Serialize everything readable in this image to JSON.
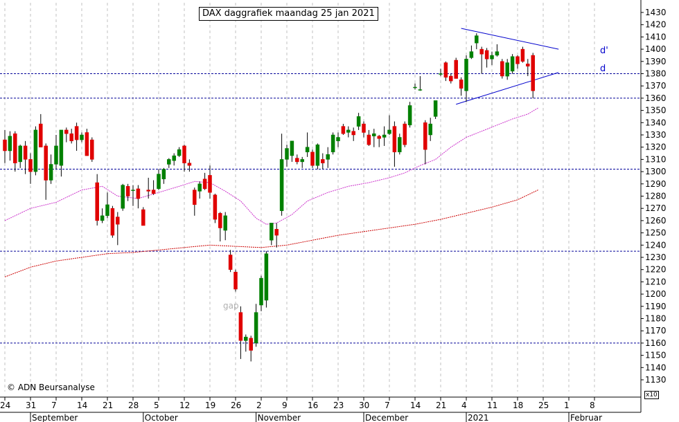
{
  "title": "DAX daggrafiek maandag 25 jan 2021",
  "copyright": "© ADN Beursanalyse",
  "annotations": {
    "gap": "gap",
    "trendline_upper": "d'",
    "trendline_lower": "d"
  },
  "axis_multiplier": "x10",
  "colors": {
    "bull": "#008000",
    "bear": "#e00000",
    "ma_short": "#cc33cc",
    "ma_long": "#cc0000",
    "horizontal_lines": "#000099",
    "trendlines": "#0000cc",
    "grid": "#c0c0c0"
  },
  "chart_data": {
    "type": "candlestick",
    "title": "DAX daggrafiek maandag 25 jan 2021",
    "y_unit_multiplier": 10,
    "ylim": [
      1125,
      1440
    ],
    "yticks": [
      1130,
      1140,
      1150,
      1160,
      1170,
      1180,
      1190,
      1200,
      1210,
      1220,
      1230,
      1240,
      1250,
      1260,
      1270,
      1280,
      1290,
      1300,
      1310,
      1320,
      1330,
      1340,
      1350,
      1360,
      1370,
      1380,
      1390,
      1400,
      1410,
      1420,
      1430
    ],
    "x_tick_labels": [
      {
        "label": "24",
        "day": 0
      },
      {
        "label": "31",
        "day": 5
      },
      {
        "label": "7",
        "day": 10
      },
      {
        "label": "14",
        "day": 15
      },
      {
        "label": "21",
        "day": 20
      },
      {
        "label": "28",
        "day": 25
      },
      {
        "label": "5",
        "day": 30
      },
      {
        "label": "12",
        "day": 35
      },
      {
        "label": "19",
        "day": 40
      },
      {
        "label": "26",
        "day": 45
      },
      {
        "label": "2",
        "day": 50
      },
      {
        "label": "9",
        "day": 55
      },
      {
        "label": "16",
        "day": 60
      },
      {
        "label": "23",
        "day": 65
      },
      {
        "label": "30",
        "day": 70
      },
      {
        "label": "7",
        "day": 75
      },
      {
        "label": "14",
        "day": 80
      },
      {
        "label": "21",
        "day": 85
      },
      {
        "label": "4",
        "day": 90
      },
      {
        "label": "11",
        "day": 95
      },
      {
        "label": "18",
        "day": 100
      },
      {
        "label": "25",
        "day": 105
      },
      {
        "label": "1",
        "day": 110
      },
      {
        "label": "8",
        "day": 115
      }
    ],
    "month_labels": [
      {
        "label": "September",
        "day": 5
      },
      {
        "label": "October",
        "day": 27
      },
      {
        "label": "November",
        "day": 49
      },
      {
        "label": "December",
        "day": 70
      },
      {
        "label": "2021",
        "day": 90
      },
      {
        "label": "Februar",
        "day": 110
      }
    ],
    "horizontal_levels": [
      1380,
      1360,
      1302,
      1235,
      1160
    ],
    "trendlines": [
      {
        "name": "d'",
        "from": [
          89,
          1417
        ],
        "to": [
          108,
          1400
        ]
      },
      {
        "name": "d",
        "from": [
          88,
          1355
        ],
        "to": [
          108,
          1381
        ]
      }
    ],
    "moving_averages": [
      {
        "name": "ma_short",
        "points": [
          [
            0,
            1260
          ],
          [
            5,
            1270
          ],
          [
            10,
            1275
          ],
          [
            15,
            1285
          ],
          [
            19,
            1288
          ],
          [
            22,
            1280
          ],
          [
            26,
            1278
          ],
          [
            30,
            1283
          ],
          [
            34,
            1288
          ],
          [
            37,
            1292
          ],
          [
            40,
            1291
          ],
          [
            43,
            1284
          ],
          [
            46,
            1276
          ],
          [
            49,
            1262
          ],
          [
            51,
            1257
          ],
          [
            53,
            1258
          ],
          [
            56,
            1265
          ],
          [
            59,
            1276
          ],
          [
            63,
            1283
          ],
          [
            67,
            1288
          ],
          [
            71,
            1291
          ],
          [
            75,
            1295
          ],
          [
            78,
            1299
          ],
          [
            81,
            1305
          ],
          [
            84,
            1310
          ],
          [
            87,
            1320
          ],
          [
            90,
            1328
          ],
          [
            93,
            1333
          ],
          [
            96,
            1338
          ],
          [
            99,
            1343
          ],
          [
            102,
            1347
          ],
          [
            104,
            1352
          ]
        ]
      },
      {
        "name": "ma_long",
        "points": [
          [
            0,
            1214
          ],
          [
            5,
            1222
          ],
          [
            10,
            1227
          ],
          [
            15,
            1230
          ],
          [
            20,
            1233
          ],
          [
            25,
            1234
          ],
          [
            30,
            1236
          ],
          [
            35,
            1238
          ],
          [
            40,
            1240
          ],
          [
            45,
            1239
          ],
          [
            50,
            1238
          ],
          [
            55,
            1240
          ],
          [
            60,
            1244
          ],
          [
            65,
            1248
          ],
          [
            70,
            1251
          ],
          [
            75,
            1254
          ],
          [
            80,
            1257
          ],
          [
            85,
            1261
          ],
          [
            90,
            1266
          ],
          [
            95,
            1271
          ],
          [
            100,
            1277
          ],
          [
            104,
            1285
          ]
        ]
      }
    ],
    "candles": [
      {
        "d": 0,
        "o": 1326,
        "h": 1334,
        "l": 1307,
        "c": 1317
      },
      {
        "d": 1,
        "o": 1317,
        "h": 1333,
        "l": 1309,
        "c": 1329
      },
      {
        "d": 2,
        "o": 1331,
        "h": 1333,
        "l": 1300,
        "c": 1307
      },
      {
        "d": 3,
        "o": 1308,
        "h": 1322,
        "l": 1303,
        "c": 1321
      },
      {
        "d": 4,
        "o": 1321,
        "h": 1325,
        "l": 1298,
        "c": 1310
      },
      {
        "d": 5,
        "o": 1310,
        "h": 1315,
        "l": 1290,
        "c": 1300
      },
      {
        "d": 6,
        "o": 1300,
        "h": 1337,
        "l": 1297,
        "c": 1334
      },
      {
        "d": 7,
        "o": 1339,
        "h": 1347,
        "l": 1320,
        "c": 1320
      },
      {
        "d": 8,
        "o": 1321,
        "h": 1323,
        "l": 1277,
        "c": 1293
      },
      {
        "d": 9,
        "o": 1293,
        "h": 1314,
        "l": 1290,
        "c": 1306
      },
      {
        "d": 10,
        "o": 1306,
        "h": 1330,
        "l": 1302,
        "c": 1321
      },
      {
        "d": 11,
        "o": 1305,
        "h": 1332,
        "l": 1296,
        "c": 1334
      },
      {
        "d": 12,
        "o": 1334,
        "h": 1336,
        "l": 1324,
        "c": 1331
      },
      {
        "d": 13,
        "o": 1331,
        "h": 1335,
        "l": 1323,
        "c": 1325
      },
      {
        "d": 14,
        "o": 1337,
        "h": 1340,
        "l": 1317,
        "c": 1326
      },
      {
        "d": 15,
        "o": 1326,
        "h": 1332,
        "l": 1324,
        "c": 1330
      },
      {
        "d": 16,
        "o": 1332,
        "h": 1335,
        "l": 1313,
        "c": 1313
      },
      {
        "d": 17,
        "o": 1326,
        "h": 1328,
        "l": 1308,
        "c": 1310
      },
      {
        "d": 18,
        "o": 1291,
        "h": 1298,
        "l": 1256,
        "c": 1260
      },
      {
        "d": 19,
        "o": 1260,
        "h": 1270,
        "l": 1258,
        "c": 1264
      },
      {
        "d": 20,
        "o": 1264,
        "h": 1283,
        "l": 1262,
        "c": 1273
      },
      {
        "d": 21,
        "o": 1270,
        "h": 1272,
        "l": 1246,
        "c": 1248
      },
      {
        "d": 22,
        "o": 1263,
        "h": 1267,
        "l": 1240,
        "c": 1257
      },
      {
        "d": 23,
        "o": 1270,
        "h": 1290,
        "l": 1268,
        "c": 1289
      },
      {
        "d": 24,
        "o": 1288,
        "h": 1290,
        "l": 1276,
        "c": 1280
      },
      {
        "d": 25,
        "o": 1285,
        "h": 1289,
        "l": 1272,
        "c": 1285
      },
      {
        "d": 26,
        "o": 1286,
        "h": 1289,
        "l": 1270,
        "c": 1278
      },
      {
        "d": 27,
        "o": 1269,
        "h": 1271,
        "l": 1256,
        "c": 1256
      },
      {
        "d": 28,
        "o": 1285,
        "h": 1295,
        "l": 1278,
        "c": 1284
      },
      {
        "d": 29,
        "o": 1285,
        "h": 1293,
        "l": 1281,
        "c": 1282
      },
      {
        "d": 30,
        "o": 1286,
        "h": 1302,
        "l": 1285,
        "c": 1298
      },
      {
        "d": 31,
        "o": 1294,
        "h": 1303,
        "l": 1290,
        "c": 1302
      },
      {
        "d": 32,
        "o": 1306,
        "h": 1311,
        "l": 1303,
        "c": 1310
      },
      {
        "d": 33,
        "o": 1309,
        "h": 1315,
        "l": 1305,
        "c": 1313
      },
      {
        "d": 34,
        "o": 1313,
        "h": 1320,
        "l": 1312,
        "c": 1318
      },
      {
        "d": 35,
        "o": 1321,
        "h": 1322,
        "l": 1300,
        "c": 1307
      },
      {
        "d": 36,
        "o": 1307,
        "h": 1310,
        "l": 1300,
        "c": 1305
      },
      {
        "d": 37,
        "o": 1285,
        "h": 1287,
        "l": 1264,
        "c": 1273
      },
      {
        "d": 38,
        "o": 1284,
        "h": 1292,
        "l": 1278,
        "c": 1290
      },
      {
        "d": 39,
        "o": 1294,
        "h": 1299,
        "l": 1285,
        "c": 1286
      },
      {
        "d": 40,
        "o": 1297,
        "h": 1305,
        "l": 1278,
        "c": 1283
      },
      {
        "d": 41,
        "o": 1281,
        "h": 1282,
        "l": 1258,
        "c": 1261
      },
      {
        "d": 42,
        "o": 1266,
        "h": 1267,
        "l": 1243,
        "c": 1254
      },
      {
        "d": 43,
        "o": 1252,
        "h": 1267,
        "l": 1244,
        "c": 1264
      },
      {
        "d": 44,
        "o": 1232,
        "h": 1236,
        "l": 1218,
        "c": 1220
      },
      {
        "d": 45,
        "o": 1218,
        "h": 1220,
        "l": 1202,
        "c": 1204
      },
      {
        "d": 46,
        "o": 1185,
        "h": 1190,
        "l": 1147,
        "c": 1162
      },
      {
        "d": 47,
        "o": 1162,
        "h": 1167,
        "l": 1153,
        "c": 1165
      },
      {
        "d": 48,
        "o": 1164,
        "h": 1166,
        "l": 1145,
        "c": 1154
      },
      {
        "d": 49,
        "o": 1160,
        "h": 1192,
        "l": 1157,
        "c": 1185
      },
      {
        "d": 50,
        "o": 1191,
        "h": 1215,
        "l": 1186,
        "c": 1213
      },
      {
        "d": 51,
        "o": 1195,
        "h": 1235,
        "l": 1189,
        "c": 1233
      },
      {
        "d": 52,
        "o": 1244,
        "h": 1258,
        "l": 1240,
        "c": 1258
      },
      {
        "d": 53,
        "o": 1253,
        "h": 1258,
        "l": 1238,
        "c": 1248
      },
      {
        "d": 54,
        "o": 1268,
        "h": 1331,
        "l": 1264,
        "c": 1310
      },
      {
        "d": 55,
        "o": 1310,
        "h": 1322,
        "l": 1304,
        "c": 1319
      },
      {
        "d": 56,
        "o": 1313,
        "h": 1325,
        "l": 1308,
        "c": 1325
      },
      {
        "d": 57,
        "o": 1311,
        "h": 1314,
        "l": 1306,
        "c": 1308
      },
      {
        "d": 58,
        "o": 1308,
        "h": 1312,
        "l": 1303,
        "c": 1310
      },
      {
        "d": 59,
        "o": 1316,
        "h": 1332,
        "l": 1312,
        "c": 1320
      },
      {
        "d": 60,
        "o": 1316,
        "h": 1318,
        "l": 1303,
        "c": 1305
      },
      {
        "d": 61,
        "o": 1305,
        "h": 1323,
        "l": 1302,
        "c": 1322
      },
      {
        "d": 62,
        "o": 1310,
        "h": 1315,
        "l": 1302,
        "c": 1307
      },
      {
        "d": 63,
        "o": 1310,
        "h": 1320,
        "l": 1303,
        "c": 1314
      },
      {
        "d": 64,
        "o": 1316,
        "h": 1332,
        "l": 1314,
        "c": 1330
      },
      {
        "d": 65,
        "o": 1325,
        "h": 1332,
        "l": 1320,
        "c": 1328
      },
      {
        "d": 66,
        "o": 1337,
        "h": 1339,
        "l": 1330,
        "c": 1331
      },
      {
        "d": 67,
        "o": 1332,
        "h": 1337,
        "l": 1328,
        "c": 1334
      },
      {
        "d": 68,
        "o": 1333,
        "h": 1336,
        "l": 1325,
        "c": 1330
      },
      {
        "d": 69,
        "o": 1337,
        "h": 1348,
        "l": 1334,
        "c": 1345
      },
      {
        "d": 70,
        "o": 1339,
        "h": 1341,
        "l": 1328,
        "c": 1332
      },
      {
        "d": 71,
        "o": 1330,
        "h": 1334,
        "l": 1321,
        "c": 1322
      },
      {
        "d": 72,
        "o": 1329,
        "h": 1335,
        "l": 1320,
        "c": 1331
      },
      {
        "d": 73,
        "o": 1329,
        "h": 1330,
        "l": 1320,
        "c": 1327
      },
      {
        "d": 74,
        "o": 1328,
        "h": 1337,
        "l": 1321,
        "c": 1330
      },
      {
        "d": 75,
        "o": 1331,
        "h": 1346,
        "l": 1330,
        "c": 1334
      },
      {
        "d": 76,
        "o": 1337,
        "h": 1341,
        "l": 1304,
        "c": 1316
      },
      {
        "d": 77,
        "o": 1316,
        "h": 1331,
        "l": 1314,
        "c": 1328
      },
      {
        "d": 78,
        "o": 1339,
        "h": 1341,
        "l": 1320,
        "c": 1322
      },
      {
        "d": 79,
        "o": 1338,
        "h": 1357,
        "l": 1336,
        "c": 1354
      },
      {
        "d": 80,
        "o": 1369,
        "h": 1372,
        "l": 1367,
        "c": 1369
      },
      {
        "d": 81,
        "o": 1367,
        "h": 1378,
        "l": 1366,
        "c": 1367
      },
      {
        "d": 82,
        "o": 1340,
        "h": 1342,
        "l": 1306,
        "c": 1318
      },
      {
        "d": 83,
        "o": 1330,
        "h": 1344,
        "l": 1325,
        "c": 1339
      },
      {
        "d": 84,
        "o": 1345,
        "h": 1358,
        "l": 1343,
        "c": 1358
      },
      {
        "d": 85,
        "o": 1380,
        "h": 1384,
        "l": 1378,
        "c": 1380
      },
      {
        "d": 86,
        "o": 1389,
        "h": 1390,
        "l": 1374,
        "c": 1377
      },
      {
        "d": 87,
        "o": 1378,
        "h": 1380,
        "l": 1372,
        "c": 1374
      },
      {
        "d": 88,
        "o": 1391,
        "h": 1393,
        "l": 1376,
        "c": 1376
      },
      {
        "d": 89,
        "o": 1375,
        "h": 1377,
        "l": 1362,
        "c": 1368
      },
      {
        "d": 90,
        "o": 1366,
        "h": 1395,
        "l": 1357,
        "c": 1392
      },
      {
        "d": 91,
        "o": 1393,
        "h": 1403,
        "l": 1392,
        "c": 1398
      },
      {
        "d": 92,
        "o": 1405,
        "h": 1413,
        "l": 1400,
        "c": 1411
      },
      {
        "d": 93,
        "o": 1400,
        "h": 1402,
        "l": 1380,
        "c": 1396
      },
      {
        "d": 94,
        "o": 1399,
        "h": 1401,
        "l": 1385,
        "c": 1392
      },
      {
        "d": 95,
        "o": 1392,
        "h": 1398,
        "l": 1387,
        "c": 1395
      },
      {
        "d": 96,
        "o": 1395,
        "h": 1404,
        "l": 1394,
        "c": 1398
      },
      {
        "d": 97,
        "o": 1390,
        "h": 1392,
        "l": 1376,
        "c": 1378
      },
      {
        "d": 98,
        "o": 1378,
        "h": 1392,
        "l": 1375,
        "c": 1389
      },
      {
        "d": 99,
        "o": 1382,
        "h": 1396,
        "l": 1380,
        "c": 1394
      },
      {
        "d": 100,
        "o": 1394,
        "h": 1395,
        "l": 1384,
        "c": 1388
      },
      {
        "d": 101,
        "o": 1400,
        "h": 1402,
        "l": 1389,
        "c": 1390
      },
      {
        "d": 102,
        "o": 1388,
        "h": 1392,
        "l": 1378,
        "c": 1386
      },
      {
        "d": 103,
        "o": 1395,
        "h": 1397,
        "l": 1360,
        "c": 1366
      }
    ]
  }
}
